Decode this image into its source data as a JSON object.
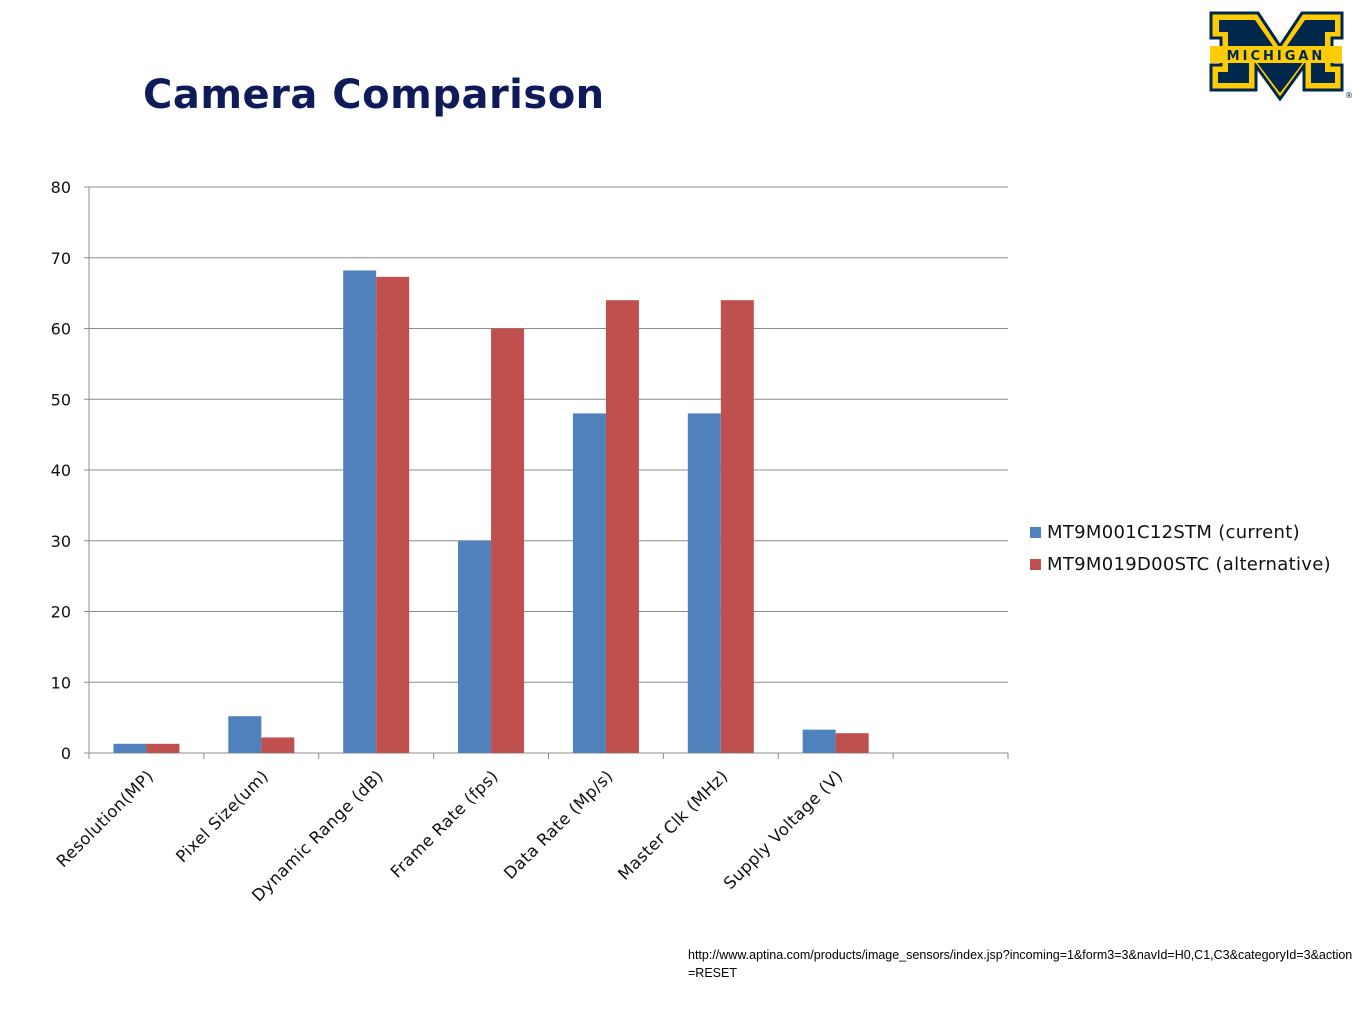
{
  "slide": {
    "title": "Camera Comparison",
    "logo_text": "MICHIGAN",
    "logo_mark": "®",
    "source_url": "http://www.aptina.com/products/image_sensors/index.jsp?incoming=1&form3=3&navId=H0,C1,C3&categoryId=3&action=RESET"
  },
  "colors": {
    "title": "#0f1a5a",
    "series1": "#4f81bd",
    "series2": "#c0504d",
    "gridline": "#8c8c8c",
    "logo_blue": "#00274c",
    "logo_maize": "#ffcb05"
  },
  "chart_data": {
    "type": "bar",
    "categories": [
      "Resolution(MP)",
      "Pixel Size(um)",
      "Dynamic Range (dB)",
      "Frame Rate (fps)",
      "Data Rate (Mp/s)",
      "Master Clk (MHz)",
      "Supply Voltage (V)",
      ""
    ],
    "series": [
      {
        "name": "MT9M001C12STM (current)",
        "values": [
          1.3,
          5.2,
          68.2,
          30,
          48,
          48,
          3.3,
          null
        ]
      },
      {
        "name": "MT9M019D00STC (alternative)",
        "values": [
          1.3,
          2.2,
          67.3,
          60,
          64,
          64,
          2.8,
          null
        ]
      }
    ],
    "ylim": [
      0,
      80
    ],
    "yticks": [
      "0",
      "10",
      "20",
      "30",
      "40",
      "50",
      "60",
      "70",
      "80"
    ],
    "grid": true,
    "legend_position": "right"
  }
}
